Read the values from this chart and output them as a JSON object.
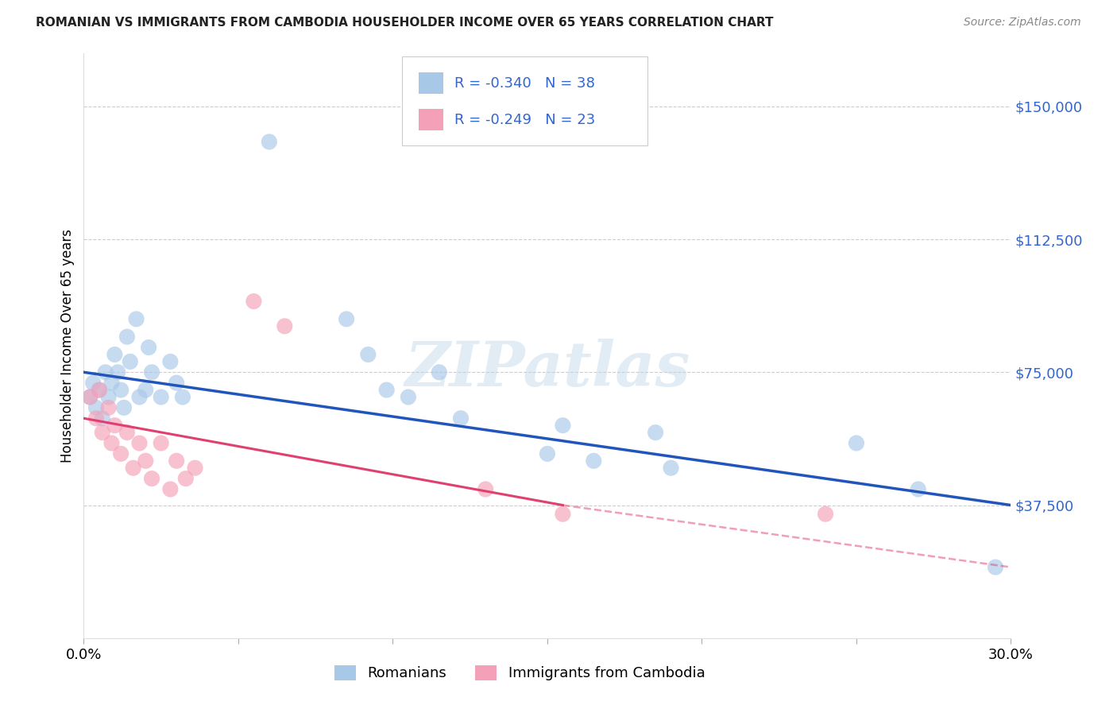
{
  "title": "ROMANIAN VS IMMIGRANTS FROM CAMBODIA HOUSEHOLDER INCOME OVER 65 YEARS CORRELATION CHART",
  "source": "Source: ZipAtlas.com",
  "ylabel": "Householder Income Over 65 years",
  "xlim": [
    0.0,
    0.3
  ],
  "ylim": [
    0,
    165000
  ],
  "yticks": [
    37500,
    75000,
    112500,
    150000
  ],
  "ytick_labels": [
    "$37,500",
    "$75,000",
    "$112,500",
    "$150,000"
  ],
  "xticks": [
    0.0,
    0.05,
    0.1,
    0.15,
    0.2,
    0.25,
    0.3
  ],
  "xtick_labels": [
    "0.0%",
    "",
    "",
    "",
    "",
    "",
    "30.0%"
  ],
  "r_romanian": -0.34,
  "n_romanian": 38,
  "r_cambodia": -0.249,
  "n_cambodia": 23,
  "color_romanian_fill": "#a8c8e8",
  "color_cambodia_fill": "#f4a0b8",
  "color_line_romanian": "#2255bb",
  "color_line_cambodia": "#e04070",
  "background_color": "#ffffff",
  "grid_color": "#cccccc",
  "title_color": "#222222",
  "source_color": "#888888",
  "tick_label_color": "#3366cc",
  "romanians_x": [
    0.002,
    0.003,
    0.004,
    0.005,
    0.006,
    0.007,
    0.008,
    0.009,
    0.01,
    0.011,
    0.012,
    0.013,
    0.014,
    0.015,
    0.017,
    0.018,
    0.02,
    0.021,
    0.022,
    0.025,
    0.028,
    0.03,
    0.032,
    0.06,
    0.085,
    0.092,
    0.098,
    0.105,
    0.115,
    0.122,
    0.15,
    0.155,
    0.165,
    0.185,
    0.19,
    0.25,
    0.27,
    0.295
  ],
  "romanians_y": [
    68000,
    72000,
    65000,
    70000,
    62000,
    75000,
    68000,
    72000,
    80000,
    75000,
    70000,
    65000,
    85000,
    78000,
    90000,
    68000,
    70000,
    82000,
    75000,
    68000,
    78000,
    72000,
    68000,
    140000,
    90000,
    80000,
    70000,
    68000,
    75000,
    62000,
    52000,
    60000,
    50000,
    58000,
    48000,
    55000,
    42000,
    20000
  ],
  "cambodia_x": [
    0.002,
    0.004,
    0.005,
    0.006,
    0.008,
    0.009,
    0.01,
    0.012,
    0.014,
    0.016,
    0.018,
    0.02,
    0.022,
    0.025,
    0.028,
    0.03,
    0.033,
    0.036,
    0.055,
    0.065,
    0.13,
    0.155,
    0.24
  ],
  "cambodia_y": [
    68000,
    62000,
    70000,
    58000,
    65000,
    55000,
    60000,
    52000,
    58000,
    48000,
    55000,
    50000,
    45000,
    55000,
    42000,
    50000,
    45000,
    48000,
    95000,
    88000,
    42000,
    35000,
    35000
  ],
  "line_romanian_x0": 0.0,
  "line_romanian_y0": 75000,
  "line_romanian_x1": 0.3,
  "line_romanian_y1": 37500,
  "line_cambodia_x0": 0.0,
  "line_cambodia_y0": 62000,
  "line_cambodia_x1": 0.155,
  "line_cambodia_y1": 37500,
  "line_cambodia_ext_x1": 0.3,
  "line_cambodia_ext_y1": 20000
}
